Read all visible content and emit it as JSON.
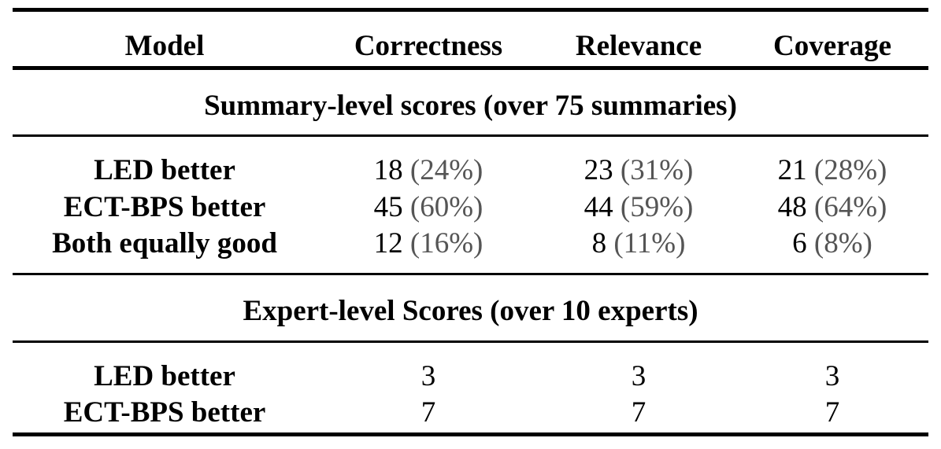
{
  "table": {
    "headers": [
      "Model",
      "Correctness",
      "Relevance",
      "Coverage"
    ],
    "sections": [
      {
        "title": "Summary-level scores (over 75 summaries)",
        "rows": [
          {
            "model": "LED better",
            "cells": [
              {
                "count": "18",
                "pct": "(24%)"
              },
              {
                "count": "23",
                "pct": "(31%)"
              },
              {
                "count": "21",
                "pct": "(28%)"
              }
            ]
          },
          {
            "model": "ECT-BPS better",
            "cells": [
              {
                "count": "45",
                "pct": "(60%)"
              },
              {
                "count": "44",
                "pct": "(59%)"
              },
              {
                "count": "48",
                "pct": "(64%)"
              }
            ]
          },
          {
            "model": "Both equally good",
            "cells": [
              {
                "count": "12",
                "pct": "(16%)"
              },
              {
                "count": "8",
                "pct": "(11%)"
              },
              {
                "count": "6",
                "pct": "(8%)"
              }
            ]
          }
        ]
      },
      {
        "title": "Expert-level Scores (over 10 experts)",
        "rows": [
          {
            "model": "LED better",
            "cells": [
              {
                "count": "3"
              },
              {
                "count": "3"
              },
              {
                "count": "3"
              }
            ]
          },
          {
            "model": "ECT-BPS better",
            "cells": [
              {
                "count": "7"
              },
              {
                "count": "7"
              },
              {
                "count": "7"
              }
            ]
          }
        ]
      }
    ]
  }
}
